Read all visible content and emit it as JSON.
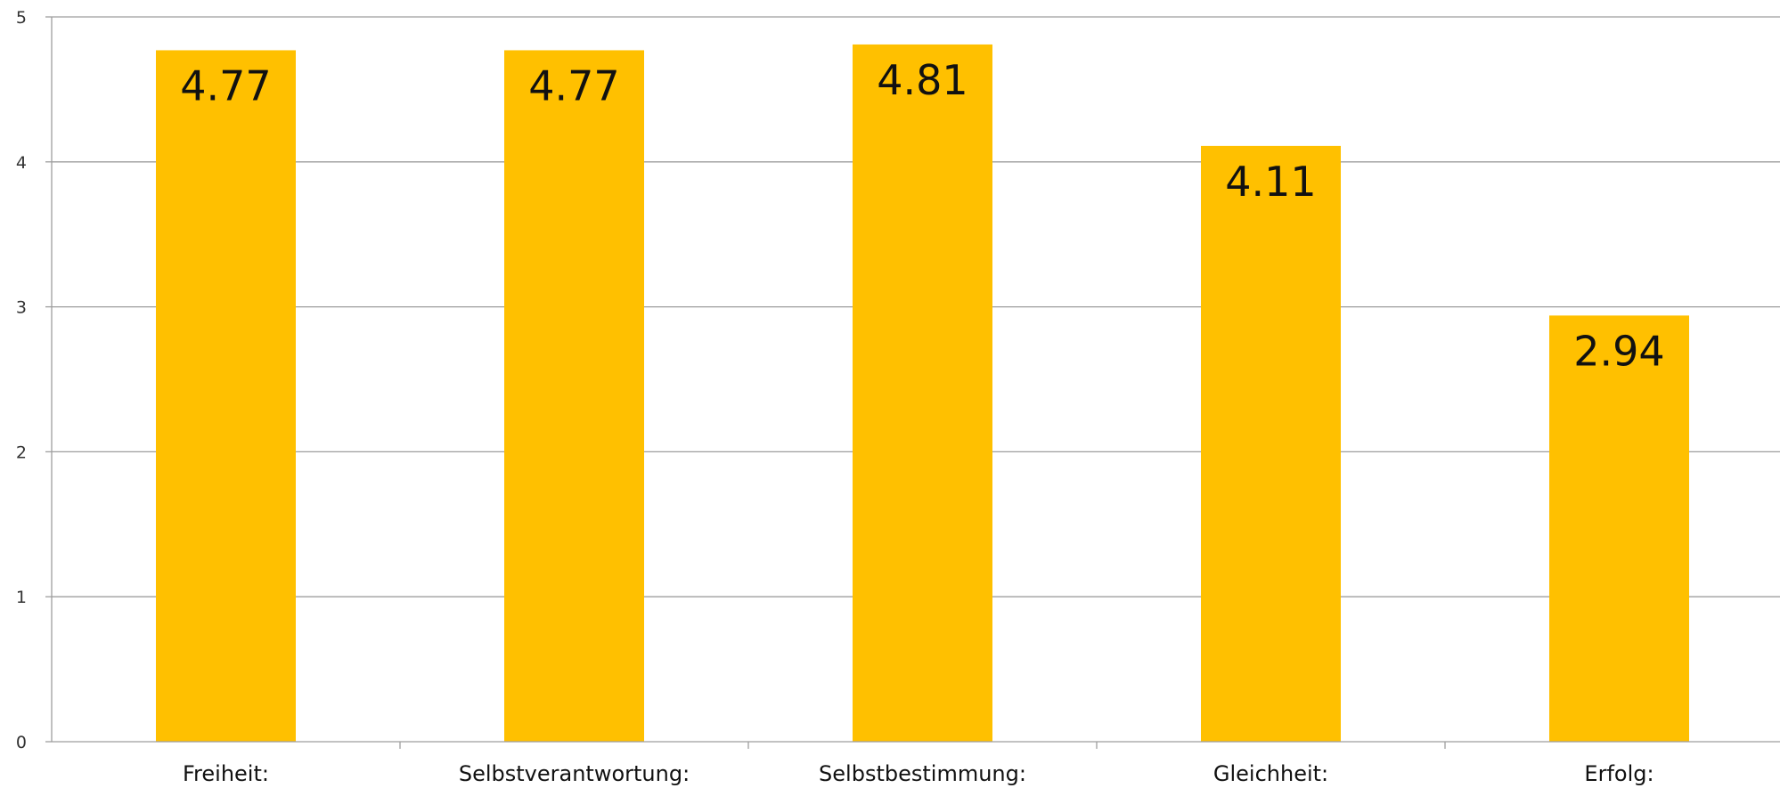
{
  "chart_data": {
    "type": "bar",
    "categories": [
      "Freiheit:",
      "Selbstverantwortung:",
      "Selbstbestimmung:",
      "Gleichheit:",
      "Erfolg:"
    ],
    "values": [
      4.77,
      4.77,
      4.81,
      4.11,
      2.94
    ],
    "value_labels": [
      "4.77",
      "4.77",
      "4.81",
      "4.11",
      "2.94"
    ],
    "yticks": [
      "0",
      "1",
      "2",
      "3",
      "4",
      "5"
    ],
    "ylim": [
      0,
      5
    ],
    "grid": true,
    "legend": "none",
    "bar_color": "#FFC000"
  }
}
